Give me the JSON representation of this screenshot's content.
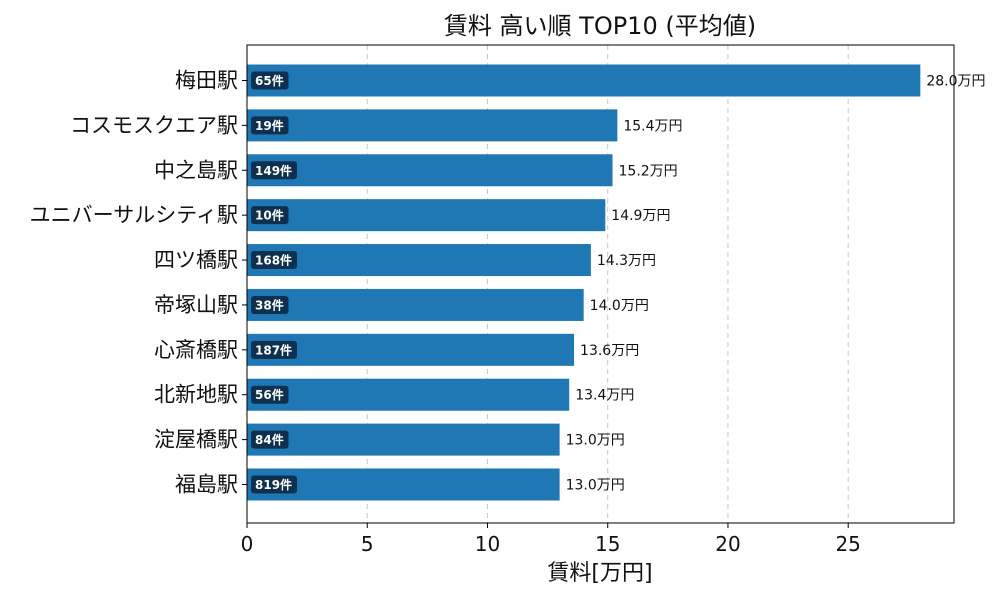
{
  "chart_data": {
    "type": "bar",
    "orientation": "horizontal",
    "title": "賃料 高い順 TOP10 (平均値)",
    "xlabel": "賃料[万円]",
    "ylabel": "",
    "xlim": [
      0,
      29.4
    ],
    "xticks": [
      0,
      5,
      10,
      15,
      20,
      25
    ],
    "grid": "x-dashed",
    "bar_color": "#1f77b4",
    "badge_color": "#0d3050",
    "categories": [
      "梅田駅",
      "コスモスクエア駅",
      "中之島駅",
      "ユニバーサルシティ駅",
      "四ツ橋駅",
      "帝塚山駅",
      "心斎橋駅",
      "北新地駅",
      "淀屋橋駅",
      "福島駅"
    ],
    "values": [
      28.0,
      15.4,
      15.2,
      14.9,
      14.3,
      14.0,
      13.6,
      13.4,
      13.0,
      13.0
    ],
    "value_labels": [
      "28.0万円",
      "15.4万円",
      "15.2万円",
      "14.9万円",
      "14.3万円",
      "14.0万円",
      "13.6万円",
      "13.4万円",
      "13.0万円",
      "13.0万円"
    ],
    "counts": [
      "65件",
      "19件",
      "149件",
      "10件",
      "168件",
      "38件",
      "187件",
      "56件",
      "84件",
      "819件"
    ]
  }
}
